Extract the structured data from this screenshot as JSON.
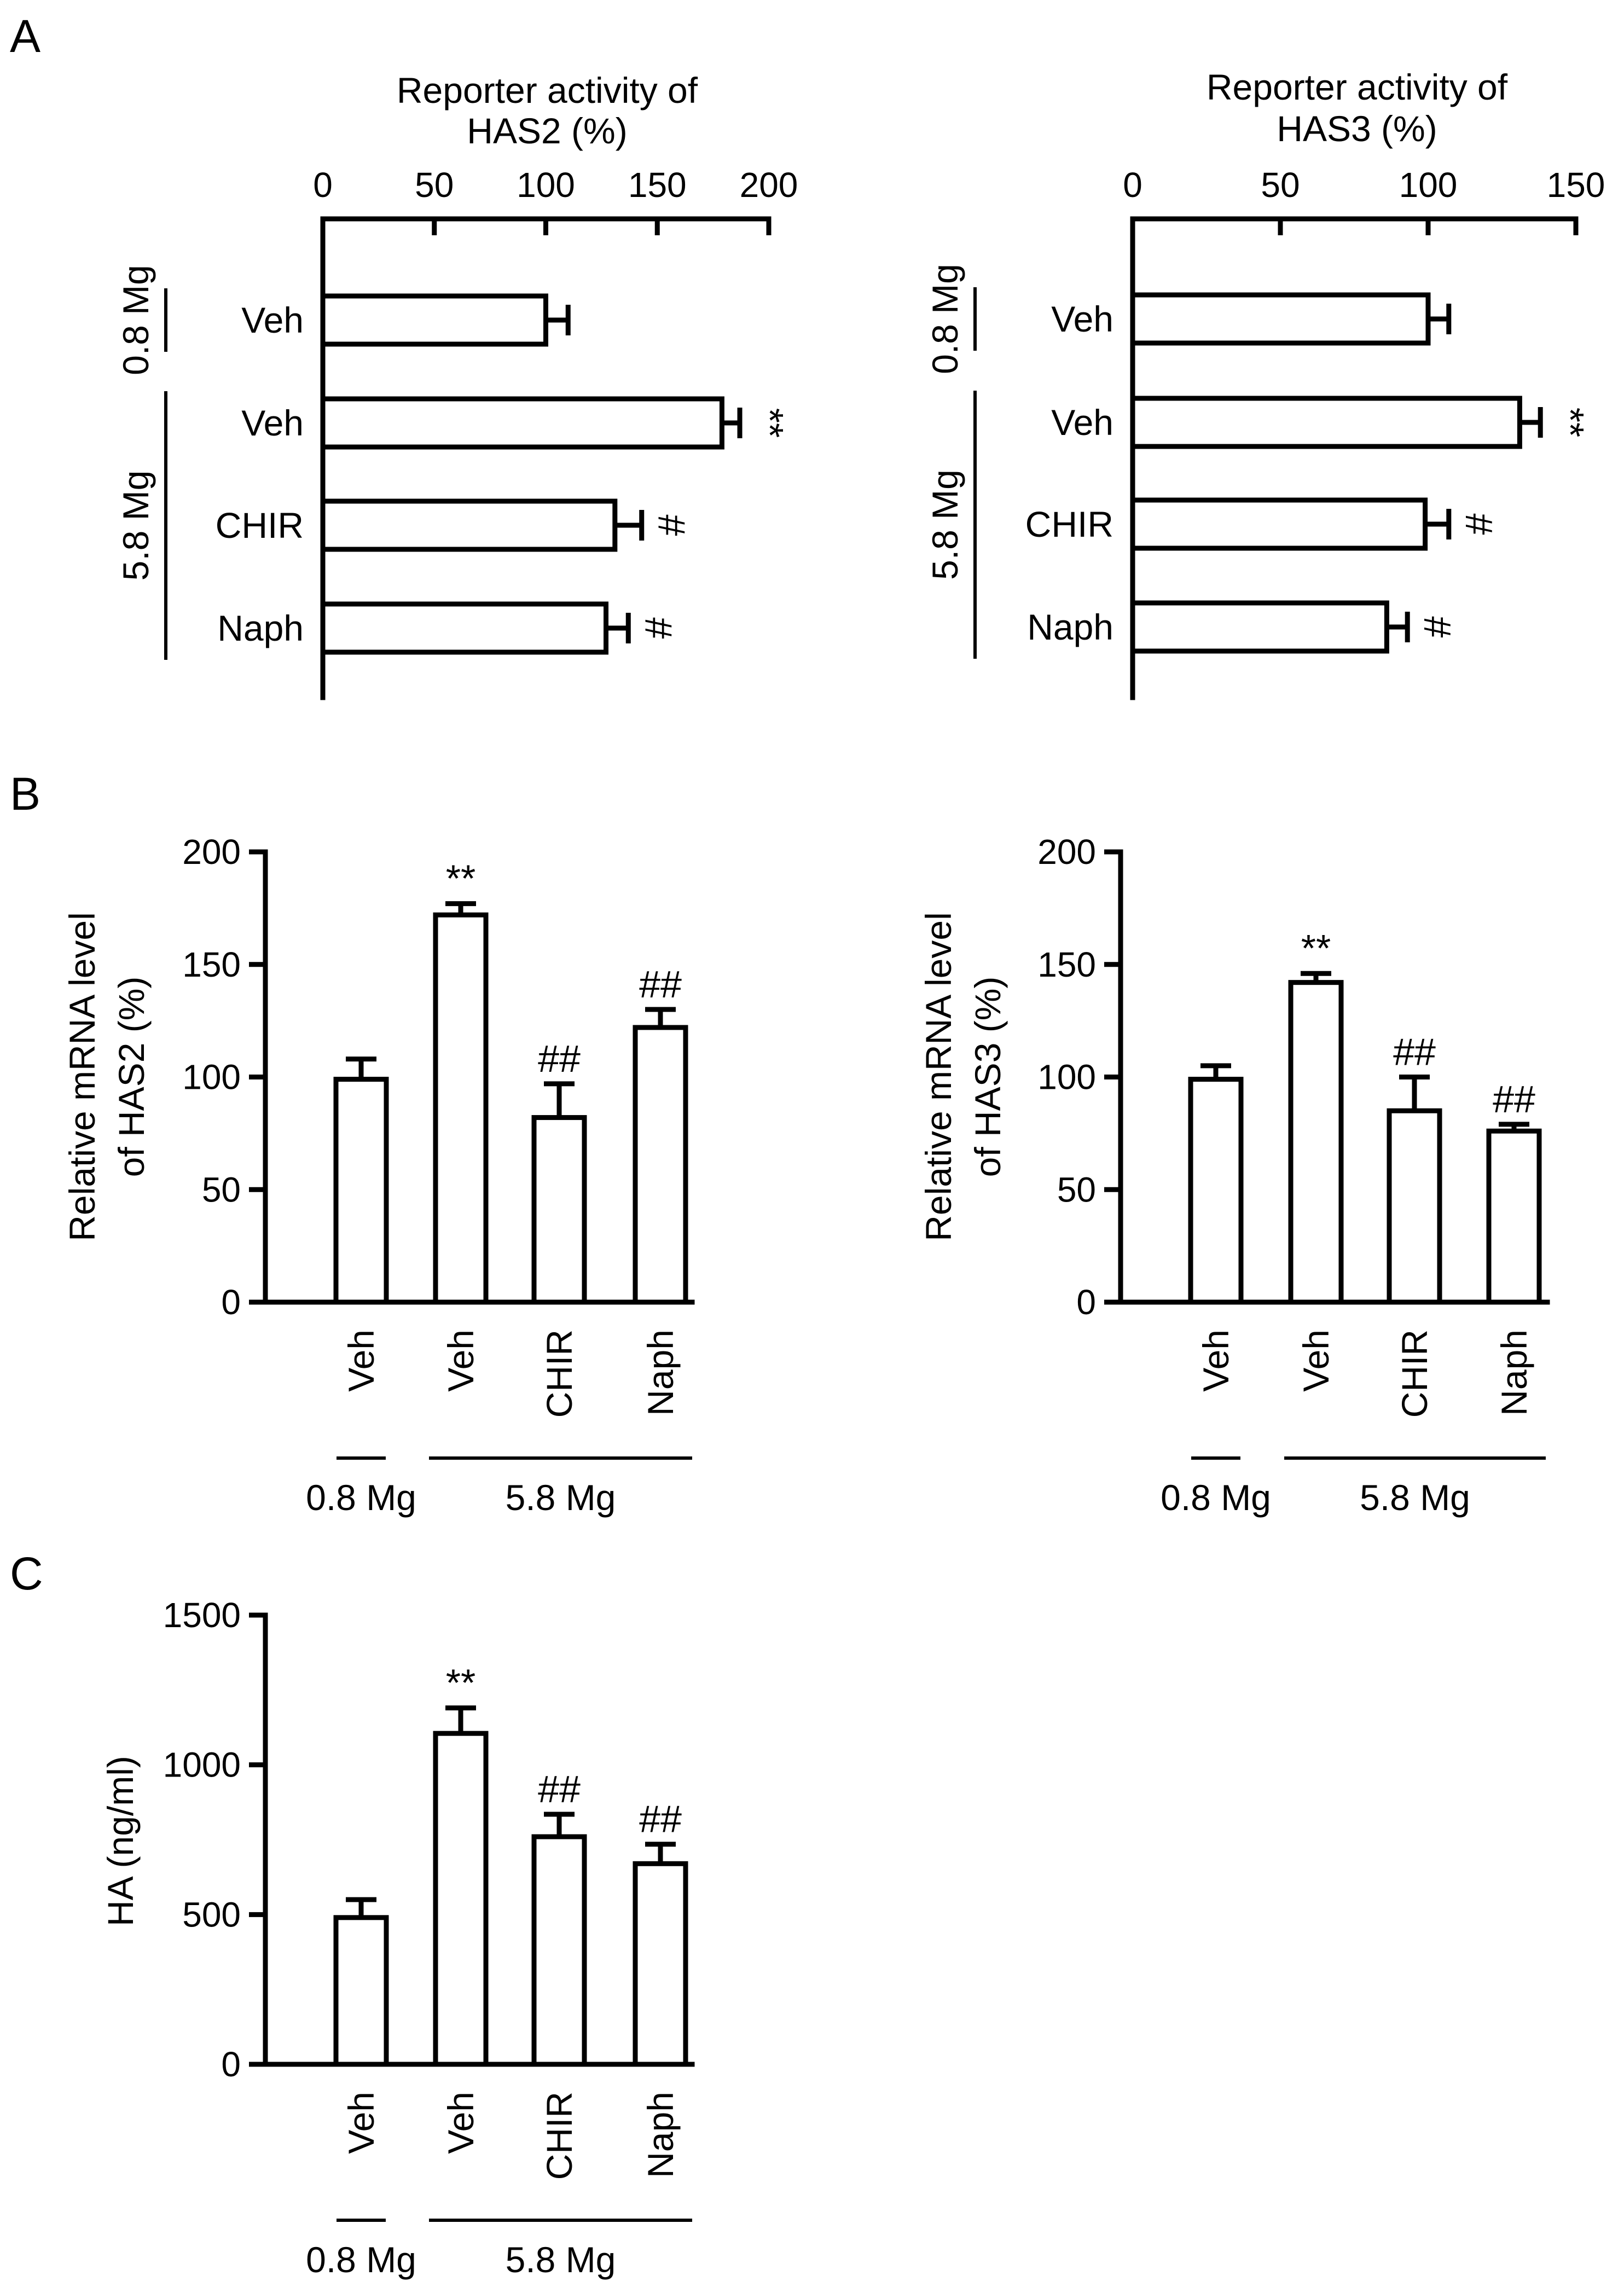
{
  "panel_labels": [
    "A",
    "B",
    "C"
  ],
  "chart_data": [
    {
      "id": "A-left",
      "panel": "A",
      "type": "bar",
      "orientation": "horizontal",
      "title_lines": [
        "Reporter activity of",
        "HAS2  (%)"
      ],
      "categories": [
        "Veh",
        "Veh",
        "CHIR",
        "Naph"
      ],
      "values": [
        100,
        179,
        131,
        127
      ],
      "errors": [
        10,
        8,
        12,
        10
      ],
      "significance": [
        "",
        "**",
        "#",
        "#"
      ],
      "xlim": [
        0,
        200
      ],
      "ticks": [
        0,
        50,
        100,
        150,
        200
      ],
      "tick_labels": [
        "0",
        "50",
        "100",
        "150",
        "200"
      ],
      "groups": [
        {
          "label": "0.8 Mg",
          "start": 0,
          "end": 0
        },
        {
          "label": "5.8 Mg",
          "start": 1,
          "end": 3
        }
      ]
    },
    {
      "id": "A-right",
      "panel": "A",
      "type": "bar",
      "orientation": "horizontal",
      "title_lines": [
        "Reporter activity of",
        "HAS3  (%)"
      ],
      "categories": [
        "Veh",
        "Veh",
        "CHIR",
        "Naph"
      ],
      "values": [
        100,
        131,
        99,
        86
      ],
      "errors": [
        7,
        7,
        8,
        7
      ],
      "significance": [
        "",
        "**",
        "#",
        "#"
      ],
      "xlim": [
        0,
        150
      ],
      "ticks": [
        0,
        50,
        100,
        150
      ],
      "tick_labels": [
        "0",
        "50",
        "100",
        "150"
      ],
      "groups": [
        {
          "label": "0.8 Mg",
          "start": 0,
          "end": 0
        },
        {
          "label": "5.8 Mg",
          "start": 1,
          "end": 3
        }
      ]
    },
    {
      "id": "B-left",
      "panel": "B",
      "type": "bar",
      "orientation": "vertical",
      "ylabel_lines": [
        "Relative mRNA level",
        "of HAS2 (%)"
      ],
      "categories": [
        "Veh",
        "Veh",
        "CHIR",
        "Naph"
      ],
      "values": [
        99,
        172,
        82,
        122
      ],
      "errors": [
        9,
        5,
        15,
        8
      ],
      "significance": [
        "",
        "**",
        "##",
        "##"
      ],
      "ylim": [
        0,
        200
      ],
      "ticks": [
        0,
        50,
        100,
        150,
        200
      ],
      "tick_labels": [
        "0",
        "50",
        "100",
        "150",
        "200"
      ],
      "groups": [
        {
          "label": "0.8 Mg",
          "start": 0,
          "end": 0
        },
        {
          "label": "5.8 Mg",
          "start": 1,
          "end": 3
        }
      ]
    },
    {
      "id": "B-right",
      "panel": "B",
      "type": "bar",
      "orientation": "vertical",
      "ylabel_lines": [
        "Relative mRNA level",
        "of HAS3 (%)"
      ],
      "categories": [
        "Veh",
        "Veh",
        "CHIR",
        "Naph"
      ],
      "values": [
        99,
        142,
        85,
        76
      ],
      "errors": [
        6,
        4,
        15,
        3
      ],
      "significance": [
        "",
        "**",
        "##",
        "##"
      ],
      "ylim": [
        0,
        200
      ],
      "ticks": [
        0,
        50,
        100,
        150,
        200
      ],
      "tick_labels": [
        "0",
        "50",
        "100",
        "150",
        "200"
      ],
      "groups": [
        {
          "label": "0.8 Mg",
          "start": 0,
          "end": 0
        },
        {
          "label": "5.8 Mg",
          "start": 1,
          "end": 3
        }
      ]
    },
    {
      "id": "C",
      "panel": "C",
      "type": "bar",
      "orientation": "vertical",
      "ylabel_lines": [
        "HA (ng/ml)"
      ],
      "categories": [
        "Veh",
        "Veh",
        "CHIR",
        "Naph"
      ],
      "values": [
        490,
        1105,
        760,
        670
      ],
      "errors": [
        60,
        85,
        75,
        65
      ],
      "significance": [
        "",
        "**",
        "##",
        "##"
      ],
      "ylim": [
        0,
        1500
      ],
      "ticks": [
        0,
        500,
        1000,
        1500
      ],
      "tick_labels": [
        "0",
        "500",
        "1000",
        "1500"
      ],
      "groups": [
        {
          "label": "0.8 Mg",
          "start": 0,
          "end": 0
        },
        {
          "label": "5.8 Mg",
          "start": 1,
          "end": 3
        }
      ]
    }
  ]
}
